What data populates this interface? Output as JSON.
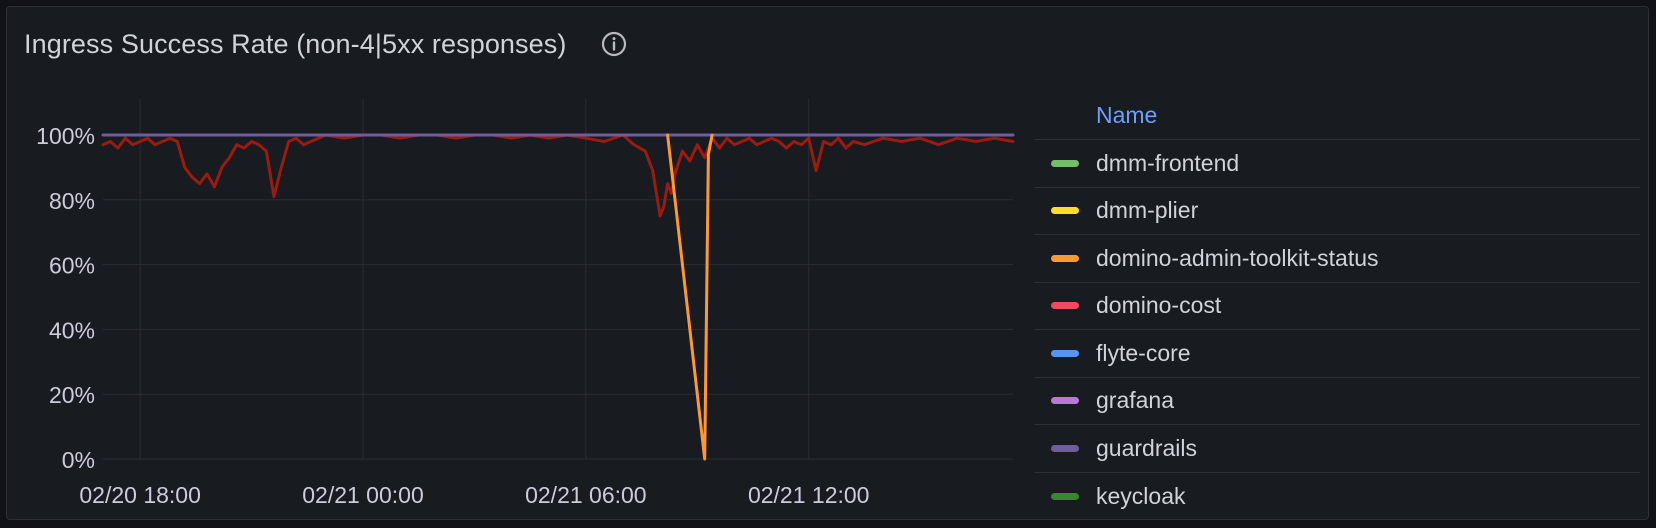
{
  "panel": {
    "title": "Ingress Success Rate (non-4|5xx responses)",
    "info_icon": "info-circle-icon"
  },
  "legend": {
    "header": "Name",
    "items": [
      {
        "label": "dmm-frontend",
        "color": "#73bf69"
      },
      {
        "label": "dmm-plier",
        "color": "#fade2a"
      },
      {
        "label": "domino-admin-toolkit-status",
        "color": "#ff9830"
      },
      {
        "label": "domino-cost",
        "color": "#f2495c"
      },
      {
        "label": "flyte-core",
        "color": "#5794f2"
      },
      {
        "label": "grafana",
        "color": "#b877d9"
      },
      {
        "label": "guardrails",
        "color": "#705da0"
      },
      {
        "label": "keycloak",
        "color": "#37872d"
      }
    ]
  },
  "chart_data": {
    "type": "line",
    "title": "Ingress Success Rate (non-4|5xx responses)",
    "ylim": [
      0,
      100
    ],
    "y_ticks": [
      "0%",
      "20%",
      "40%",
      "60%",
      "80%",
      "100%"
    ],
    "y_tick_values": [
      0,
      20,
      40,
      60,
      80,
      100
    ],
    "x_ticks": [
      "02/20 18:00",
      "02/21 00:00",
      "02/21 06:00",
      "02/21 12:00"
    ],
    "x_tick_hours": [
      18,
      24,
      30,
      36
    ],
    "x_range_hours": [
      17,
      41.5
    ],
    "grid": true,
    "legend_placement": "right",
    "series": [
      {
        "name": "guardrails",
        "color": "#705da0",
        "x": [
          17,
          41.5
        ],
        "values": [
          100,
          100
        ]
      },
      {
        "name": "domino-admin-toolkit-status",
        "color": "#ff9830",
        "x": [
          32.2,
          33.2,
          33.3,
          33.4
        ],
        "values": [
          100,
          0,
          94,
          100
        ]
      },
      {
        "name": "",
        "color": "#9b1b10",
        "x": [
          17.0,
          17.2,
          17.4,
          17.6,
          17.8,
          18.0,
          18.2,
          18.4,
          18.6,
          18.8,
          19.0,
          19.2,
          19.4,
          19.6,
          19.8,
          20.0,
          20.2,
          20.4,
          20.6,
          20.8,
          21.0,
          21.2,
          21.4,
          21.6,
          21.8,
          22.0,
          22.2,
          22.4,
          22.6,
          22.8,
          23.0,
          23.5,
          24.0,
          24.5,
          25.0,
          25.5,
          26.0,
          26.5,
          27.0,
          27.5,
          28.0,
          28.5,
          29.0,
          29.5,
          30.0,
          30.5,
          31.0,
          31.3,
          31.6,
          31.8,
          32.0,
          32.1,
          32.2,
          32.3,
          32.4,
          32.6,
          32.8,
          33.0,
          33.2,
          33.4,
          33.6,
          33.8,
          34.0,
          34.2,
          34.4,
          34.6,
          34.8,
          35.0,
          35.2,
          35.4,
          35.6,
          35.8,
          36.0,
          36.2,
          36.4,
          36.6,
          36.8,
          37.0,
          37.2,
          37.5,
          38.0,
          38.5,
          39.0,
          39.5,
          40.0,
          40.5,
          41.0,
          41.5
        ],
        "values": [
          97,
          98,
          96,
          99,
          97,
          98,
          99,
          97,
          98,
          99,
          98,
          90,
          87,
          85,
          88,
          84,
          90,
          93,
          97,
          96,
          98,
          97,
          95,
          81,
          90,
          98,
          99,
          97,
          98,
          99,
          100,
          99,
          100,
          100,
          99,
          100,
          100,
          99,
          100,
          100,
          99,
          100,
          99,
          100,
          99,
          98,
          100,
          97,
          95,
          89,
          75,
          78,
          85,
          82,
          88,
          95,
          92,
          97,
          93,
          99,
          96,
          99,
          97,
          98,
          99,
          97,
          98,
          99,
          98,
          96,
          98,
          97,
          99,
          89,
          98,
          97,
          99,
          96,
          98,
          97,
          99,
          98,
          99,
          97,
          99,
          98,
          99,
          98
        ]
      }
    ]
  }
}
